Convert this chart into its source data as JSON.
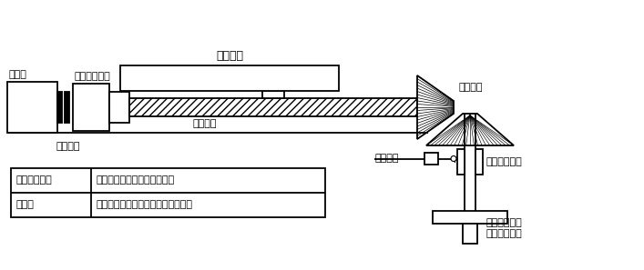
{
  "bg_color": "#ffffff",
  "line_color": "#000000",
  "table_data": [
    [
      "手動ハンドル",
      "かさ歯車によりねじ軸と切断"
    ],
    [
      "モータ",
      "クラッチにより送りねじ軸と一体化"
    ]
  ],
  "labels": {
    "motor": "モータ",
    "clutch": "クラッチ",
    "gearbox": "ギヤボックス",
    "table": "テーブル",
    "feed_screw": "送りねじ",
    "bevel_gear": "かさ歯車",
    "sensor": "センサー",
    "slide_bearing": "すべり軸受け",
    "manual_handle": "手動ハンドル\n（回転移動）"
  },
  "figsize": [
    7.07,
    2.97
  ],
  "dpi": 100
}
